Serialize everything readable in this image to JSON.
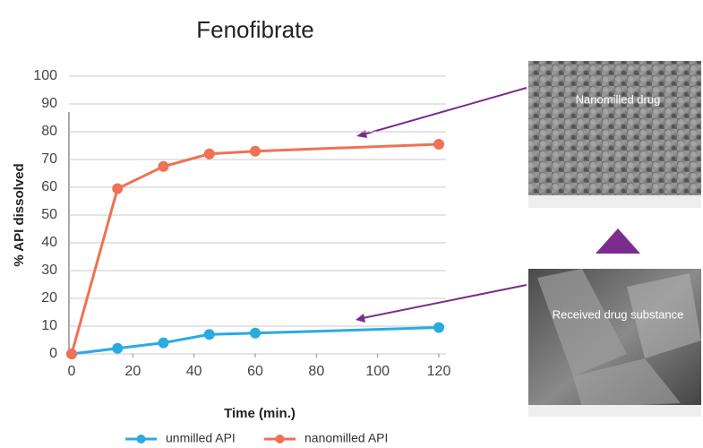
{
  "chart_data": {
    "type": "line",
    "title": "Fenofibrate",
    "x_label": "Time (min.)",
    "y_label": "% API dissolved",
    "x": [
      0,
      15,
      30,
      45,
      60,
      120
    ],
    "series": [
      {
        "name": "unmilled API",
        "color": "#29abe2",
        "values": [
          0,
          2,
          4,
          7,
          7.5,
          9.5
        ]
      },
      {
        "name": "nanomilled API",
        "color": "#f07154",
        "values": [
          0,
          59.5,
          67.5,
          72,
          73,
          75.5
        ]
      }
    ],
    "xlim": [
      0,
      120
    ],
    "xticks": [
      0,
      20,
      40,
      60,
      80,
      100,
      120
    ],
    "ylim": [
      0,
      100
    ],
    "yticks": [
      0,
      10,
      20,
      30,
      40,
      50,
      60,
      70,
      80,
      90,
      100
    ],
    "grid": true,
    "legend": "bottom",
    "annotations": [
      "Nanomilled drug",
      "Received drug substance"
    ]
  }
}
